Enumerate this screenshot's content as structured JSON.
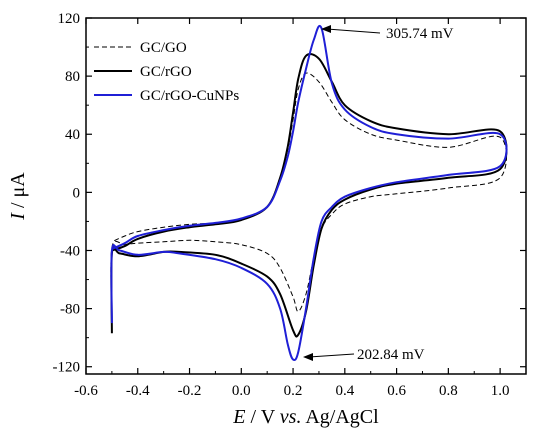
{
  "chart_data": {
    "type": "line",
    "xlabel": {
      "italic": "E",
      "text": " / V ",
      "italic2": "vs.",
      "text2": " Ag/AgCl"
    },
    "ylabel": {
      "italic": "I",
      "text": " / μA"
    },
    "xlim": [
      -0.6,
      1.1
    ],
    "ylim": [
      -125,
      120
    ],
    "xticks": [
      -0.6,
      -0.4,
      -0.2,
      0.0,
      0.2,
      0.4,
      0.6,
      0.8,
      1.0
    ],
    "xtick_labels": [
      "-0.6",
      "-0.4",
      "-0.2",
      "0.0",
      "0.2",
      "0.4",
      "0.6",
      "0.8",
      "1.0"
    ],
    "yticks": [
      -120,
      -80,
      -40,
      0,
      40,
      80,
      120
    ],
    "ytick_labels": [
      "-120",
      "-80",
      "-40",
      "0",
      "40",
      "80",
      "120"
    ],
    "legend_position": "top-left",
    "series": [
      {
        "name": "GC/GO",
        "color": "#000000",
        "style": "dashed",
        "x": [
          -0.5,
          -0.5,
          -0.45,
          -0.4,
          -0.3,
          -0.2,
          -0.1,
          0.0,
          0.1,
          0.15,
          0.2,
          0.22,
          0.25,
          0.28,
          0.31,
          0.35,
          0.4,
          0.5,
          0.6,
          0.8,
          1.0,
          1.0,
          0.8,
          0.6,
          0.5,
          0.4,
          0.35,
          0.3,
          0.25,
          0.22,
          0.2,
          0.18,
          0.15,
          0.1,
          0.0,
          -0.1,
          -0.2,
          -0.3,
          -0.4,
          -0.45,
          -0.5
        ],
        "y": [
          -88,
          -38,
          -36,
          -35,
          -34,
          -33,
          -34,
          -36,
          -42,
          -52,
          -72,
          -82,
          -70,
          -45,
          -25,
          -15,
          -8,
          -3,
          -1,
          3,
          10,
          38,
          31,
          36,
          40,
          50,
          62,
          76,
          82,
          71,
          50,
          30,
          10,
          -10,
          -18,
          -21,
          -22,
          -24,
          -27,
          -30,
          -34
        ]
      },
      {
        "name": "GC/rGO",
        "color": "#000000",
        "style": "solid",
        "x": [
          -0.5,
          -0.5,
          -0.47,
          -0.4,
          -0.3,
          -0.24,
          -0.1,
          0.0,
          0.1,
          0.15,
          0.2,
          0.22,
          0.25,
          0.28,
          0.31,
          0.35,
          0.4,
          0.5,
          0.6,
          0.8,
          1.0,
          1.0,
          0.8,
          0.6,
          0.5,
          0.4,
          0.35,
          0.3,
          0.25,
          0.22,
          0.2,
          0.18,
          0.15,
          0.1,
          0.0,
          -0.1,
          -0.2,
          -0.3,
          -0.4,
          -0.45,
          -0.5
        ],
        "y": [
          -97,
          -42,
          -42,
          -44,
          -41,
          -41,
          -43,
          -49,
          -58,
          -70,
          -95,
          -98,
          -82,
          -50,
          -25,
          -12,
          -5,
          2,
          6,
          10,
          16,
          42,
          40,
          44,
          49,
          60,
          76,
          92,
          94,
          78,
          55,
          32,
          10,
          -10,
          -19,
          -22,
          -24,
          -27,
          -32,
          -37,
          -40
        ]
      },
      {
        "name": "GC/rGO-CuNPs",
        "color": "#1f1fd6",
        "style": "solid",
        "x": [
          -0.5,
          -0.5,
          -0.47,
          -0.4,
          -0.3,
          -0.24,
          -0.1,
          0.0,
          0.1,
          0.15,
          0.18,
          0.2,
          0.22,
          0.25,
          0.28,
          0.31,
          0.35,
          0.4,
          0.5,
          0.6,
          0.8,
          1.0,
          1.0,
          0.8,
          0.6,
          0.5,
          0.4,
          0.35,
          0.31,
          0.28,
          0.25,
          0.22,
          0.2,
          0.18,
          0.15,
          0.1,
          0.0,
          -0.1,
          -0.2,
          -0.3,
          -0.4,
          -0.45,
          -0.5
        ],
        "y": [
          -90,
          -40,
          -40,
          -43,
          -41,
          -42,
          -46,
          -52,
          -63,
          -80,
          -105,
          -115,
          -110,
          -80,
          -45,
          -20,
          -10,
          -3,
          3,
          7,
          12,
          18,
          40,
          37,
          40,
          45,
          57,
          75,
          113,
          105,
          85,
          62,
          42,
          25,
          8,
          -10,
          -18,
          -21,
          -23,
          -26,
          -30,
          -35,
          -39
        ]
      }
    ],
    "annotations": [
      {
        "text": "305.74 mV",
        "x": 0.31,
        "y": 113
      },
      {
        "text": "202.84 mV",
        "x": 0.2,
        "y": -113
      }
    ]
  }
}
